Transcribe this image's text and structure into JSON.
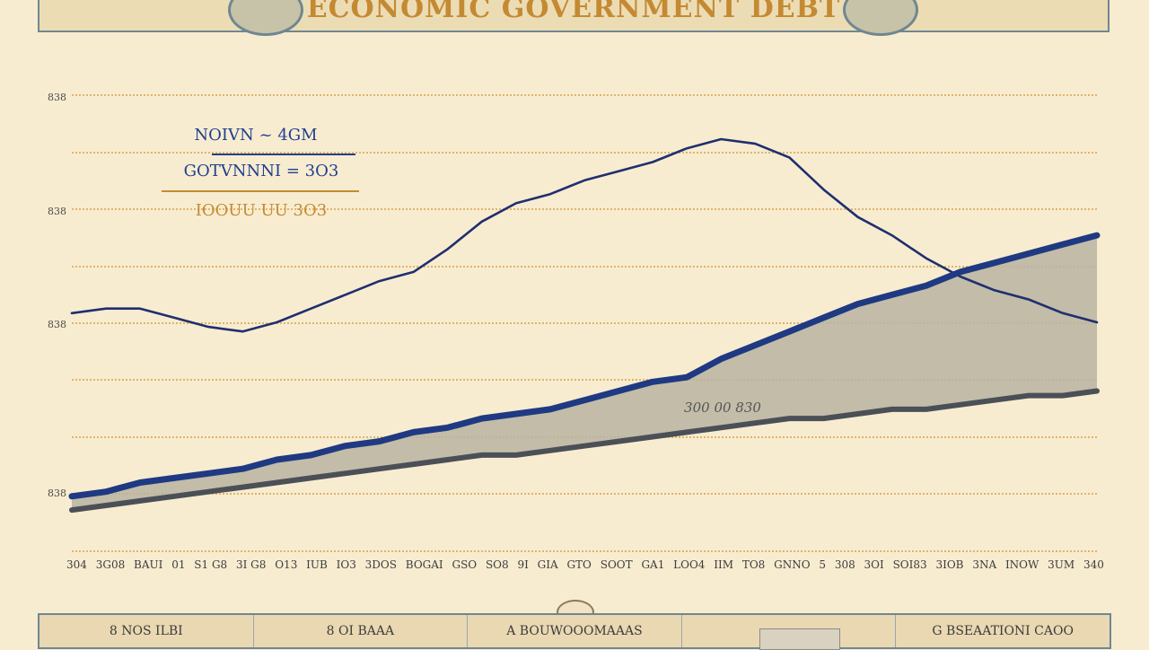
{
  "header": {
    "title": "ECONOMIC GOVERNMENT DEBT"
  },
  "legend": [
    {
      "label": "NOIVN ~ 4GM",
      "color": "#1f3f8f"
    },
    {
      "label": "GOTVNNNI = 3O3",
      "color": "#1f3f8f"
    },
    {
      "label": "IOOUU UU 3O3",
      "color": "#c48a33"
    }
  ],
  "colors": {
    "background": "#f8ecd0",
    "grid": "#d6a24a",
    "series_peak": "#1f2f6f",
    "series_upper": "#1f3a82",
    "series_lower": "#4b5057",
    "band_fill": "#b8b4a2"
  },
  "chart_data": {
    "type": "line",
    "title": "ECONOMIC GOVERNMENT DEBT",
    "grid": true,
    "y_tick_labels": [
      "838",
      "838",
      "838",
      "838"
    ],
    "x_tick_labels": [
      "304",
      "3G08",
      "BAUI",
      "01",
      "S1 G8",
      "3I G8",
      "O13",
      "IUB",
      "IO3",
      "3DOS",
      "BOGAI",
      "GSO",
      "SO8",
      "9I",
      "GIA",
      "GTO",
      "SOOT",
      "GA1",
      "LOO4",
      "IIM",
      "TO8",
      "GNNO",
      "5",
      "308",
      "3OI",
      "SOI83",
      "3IOB",
      "3NA",
      "INOW",
      "3UM",
      "340"
    ],
    "x_index": [
      0,
      1,
      2,
      3,
      4,
      5,
      6,
      7,
      8,
      9,
      10,
      11,
      12,
      13,
      14,
      15,
      16,
      17,
      18,
      19,
      20,
      21,
      22,
      23,
      24,
      25,
      26,
      27,
      28,
      29,
      30
    ],
    "series": [
      {
        "values": [
          52,
          53,
          53,
          51,
          49,
          48,
          50,
          53,
          56,
          59,
          61,
          66,
          72,
          76,
          78,
          81,
          83,
          85,
          88,
          90,
          89,
          86,
          79,
          73,
          69,
          64,
          60,
          57,
          55,
          52,
          50
        ]
      },
      {
        "values": [
          12,
          13,
          15,
          16,
          17,
          18,
          20,
          21,
          23,
          24,
          26,
          27,
          29,
          30,
          31,
          33,
          35,
          37,
          38,
          42,
          45,
          48,
          51,
          54,
          56,
          58,
          61,
          63,
          65,
          67,
          69
        ]
      },
      {
        "values": [
          9,
          10,
          11,
          12,
          13,
          14,
          15,
          16,
          17,
          18,
          19,
          20,
          21,
          21,
          22,
          23,
          24,
          25,
          26,
          27,
          28,
          29,
          29,
          30,
          31,
          31,
          32,
          33,
          34,
          34,
          35
        ]
      }
    ],
    "band_label": "300 00 830",
    "ylim": [
      0,
      100
    ]
  },
  "footer": {
    "cells": [
      "8 NOS ILBI",
      "8 OI BAAA",
      "A BOUWOOOMAAAS",
      "",
      "G BSEAATIONI CAOO"
    ]
  }
}
